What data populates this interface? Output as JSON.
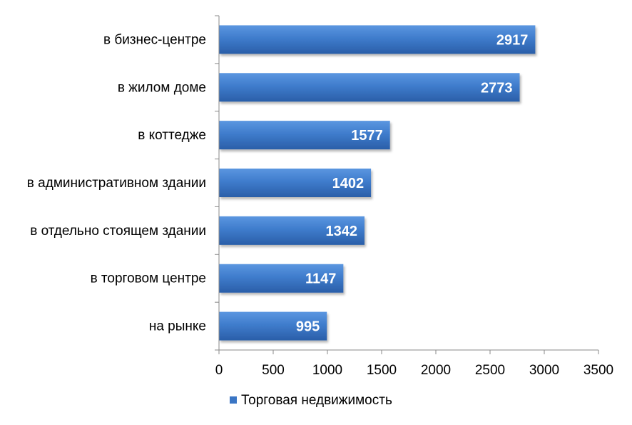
{
  "chart_data": {
    "type": "bar",
    "orientation": "horizontal",
    "categories": [
      "в бизнес-центре",
      "в жилом доме",
      "в коттедже",
      "в административном здании",
      "в отдельно стоящем здании",
      "в торговом центре",
      "на рынке"
    ],
    "series": [
      {
        "name": "Торговая недвижимость",
        "values": [
          2917,
          2773,
          1577,
          1402,
          1342,
          1147,
          995
        ],
        "color": "#3a75c4"
      }
    ],
    "xlim": [
      0,
      3500
    ],
    "xticks": [
      0,
      500,
      1000,
      1500,
      2000,
      2500,
      3000,
      3500
    ],
    "grid": false,
    "legend": "bottom",
    "data_labels": true
  }
}
